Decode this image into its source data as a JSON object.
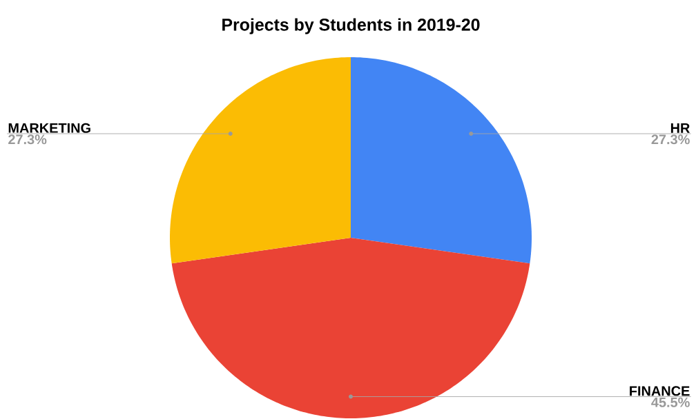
{
  "chart_data": {
    "type": "pie",
    "title": "Projects by Students in 2019-20",
    "categories": [
      "HR",
      "FINANCE",
      "MARKETING"
    ],
    "values": [
      27.3,
      45.5,
      27.3
    ],
    "colors": [
      "#4285f4",
      "#ea4335",
      "#fbbc04"
    ],
    "value_labels": [
      "27.3%",
      "45.5%",
      "27.3%"
    ]
  }
}
